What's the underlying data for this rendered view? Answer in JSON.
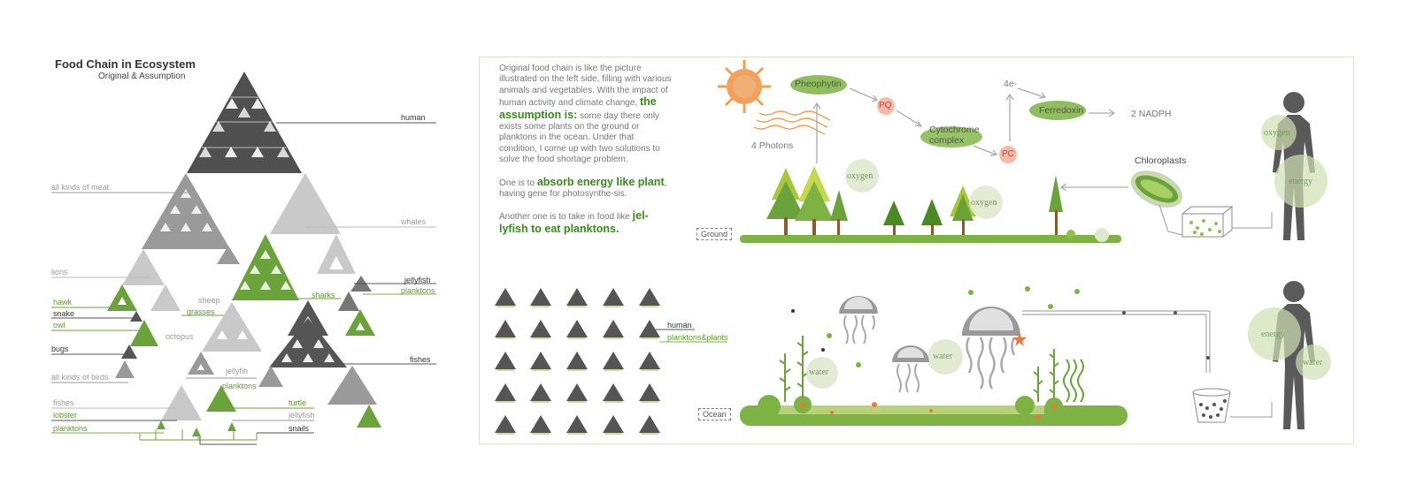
{
  "header": {
    "title": "Food Chain in Ecosystem",
    "subtitle": "Original & Assumption"
  },
  "pyramid_labels": {
    "human": "human",
    "all_kinds_of_meat": "all kinds of meat",
    "whales": "whales",
    "lions": "lions",
    "jellyfish_right": "jellyfish",
    "planktons_right": "planktons",
    "hawk": "hawk",
    "sheep": "sheep",
    "sharks": "sharks",
    "snake": "snake",
    "grasses": "grasses",
    "owl": "owl",
    "octopus": "octopus",
    "bugs": "bugs",
    "fishes_right": "fishes",
    "all_kinds_of_birds": "all kinds of birds",
    "jellyfih": "jellyfih",
    "planktons_mid": "planktons",
    "fishes_left": "fishes",
    "turtle": "turtle",
    "lobster": "lobster",
    "jellyfish_mid": "jellyfish",
    "planktons_left": "planktons",
    "snails": "snails"
  },
  "description": {
    "p1_a": "Original food chain is like the picture illustrated on the left side, filling with various animals and vegetables. With the impact of human activity and climate change, ",
    "p1_bold": "the assumption is:",
    "p1_b": " some day there only exists some plants on the ground or planktons in the ocean. Under that condition, I come up with two solutions to solve the food shortage problem.",
    "p2_a": "One is to ",
    "p2_bold": "absorb energy like plant",
    "p2_b": ", having gene for photosynthe-sis.",
    "p3_a": "Another one is to take in food like ",
    "p3_bold": "jel-lyfish to eat planktons."
  },
  "grid_labels": {
    "human": "human",
    "planktons_plants": "planktons&plants"
  },
  "photosynthesis": {
    "photons": "4 Photons",
    "pheophytin": "Pheophytin",
    "pq": "PQ",
    "cytochrome": "Cytochrome complex",
    "pc": "PC",
    "electrons": "4e-",
    "ferredoxin": "Ferredoxin",
    "nadph": "2 NADPH",
    "chloroplasts": "Chloroplasts"
  },
  "ground": {
    "tag": "Ground",
    "oxygen_1": "oxygen",
    "oxygen_2": "oxygen",
    "human_oxygen": "oxygen",
    "human_energy": "energy"
  },
  "ocean": {
    "tag": "Ocean",
    "water_1": "water",
    "water_2": "water",
    "human_energy": "energy",
    "human_water": "water"
  },
  "colors": {
    "green": "#7cb342",
    "dark_green": "#4a8a22",
    "dark_gray": "#555555",
    "light_gray": "#bdbdbd",
    "sun": "#f0a050"
  }
}
